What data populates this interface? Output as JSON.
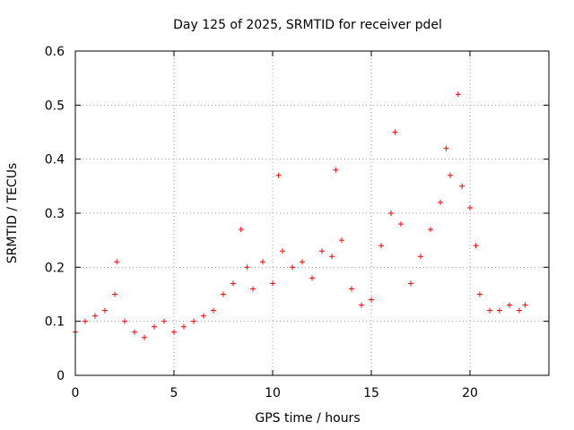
{
  "chart_data": {
    "type": "scatter",
    "title": "Day 125 of 2025, SRMTID for receiver pdel",
    "xlabel": "GPS time / hours",
    "ylabel": "SRMTID / TECUs",
    "xlim": [
      0,
      24
    ],
    "ylim": [
      0,
      0.6
    ],
    "grid": true,
    "x_ticks": [
      0,
      5,
      10,
      15,
      20
    ],
    "y_ticks": [
      0,
      0.1,
      0.2,
      0.3,
      0.4,
      0.5,
      0.6
    ],
    "x_tick_labels": [
      "0",
      "5",
      "10",
      "15",
      "20"
    ],
    "y_tick_labels": [
      "0",
      "0.1",
      "0.2",
      "0.3",
      "0.4",
      "0.5",
      "0.6"
    ],
    "marker": "+",
    "marker_color": "#ff0000",
    "series": [
      {
        "name": "SRMTID",
        "x": [
          0.0,
          0.5,
          1.0,
          1.5,
          2.0,
          2.1,
          2.5,
          3.0,
          3.5,
          4.0,
          4.5,
          5.0,
          5.5,
          6.0,
          6.5,
          7.0,
          7.5,
          8.0,
          8.4,
          8.7,
          9.0,
          9.5,
          10.0,
          10.3,
          10.5,
          11.0,
          11.5,
          12.0,
          12.5,
          13.0,
          13.2,
          13.5,
          14.0,
          14.5,
          15.0,
          15.5,
          16.0,
          16.2,
          16.5,
          17.0,
          17.5,
          18.0,
          18.5,
          18.8,
          19.0,
          19.4,
          19.6,
          20.0,
          20.3,
          20.5,
          21.0,
          21.5,
          22.0,
          22.5,
          22.8
        ],
        "y": [
          0.08,
          0.1,
          0.11,
          0.12,
          0.15,
          0.21,
          0.1,
          0.08,
          0.07,
          0.09,
          0.1,
          0.08,
          0.09,
          0.1,
          0.11,
          0.12,
          0.15,
          0.17,
          0.27,
          0.2,
          0.16,
          0.21,
          0.17,
          0.37,
          0.23,
          0.2,
          0.21,
          0.18,
          0.23,
          0.22,
          0.38,
          0.25,
          0.16,
          0.13,
          0.14,
          0.24,
          0.3,
          0.45,
          0.28,
          0.17,
          0.22,
          0.27,
          0.32,
          0.42,
          0.37,
          0.52,
          0.35,
          0.31,
          0.24,
          0.15,
          0.12,
          0.12,
          0.13,
          0.12,
          0.13
        ]
      }
    ]
  }
}
